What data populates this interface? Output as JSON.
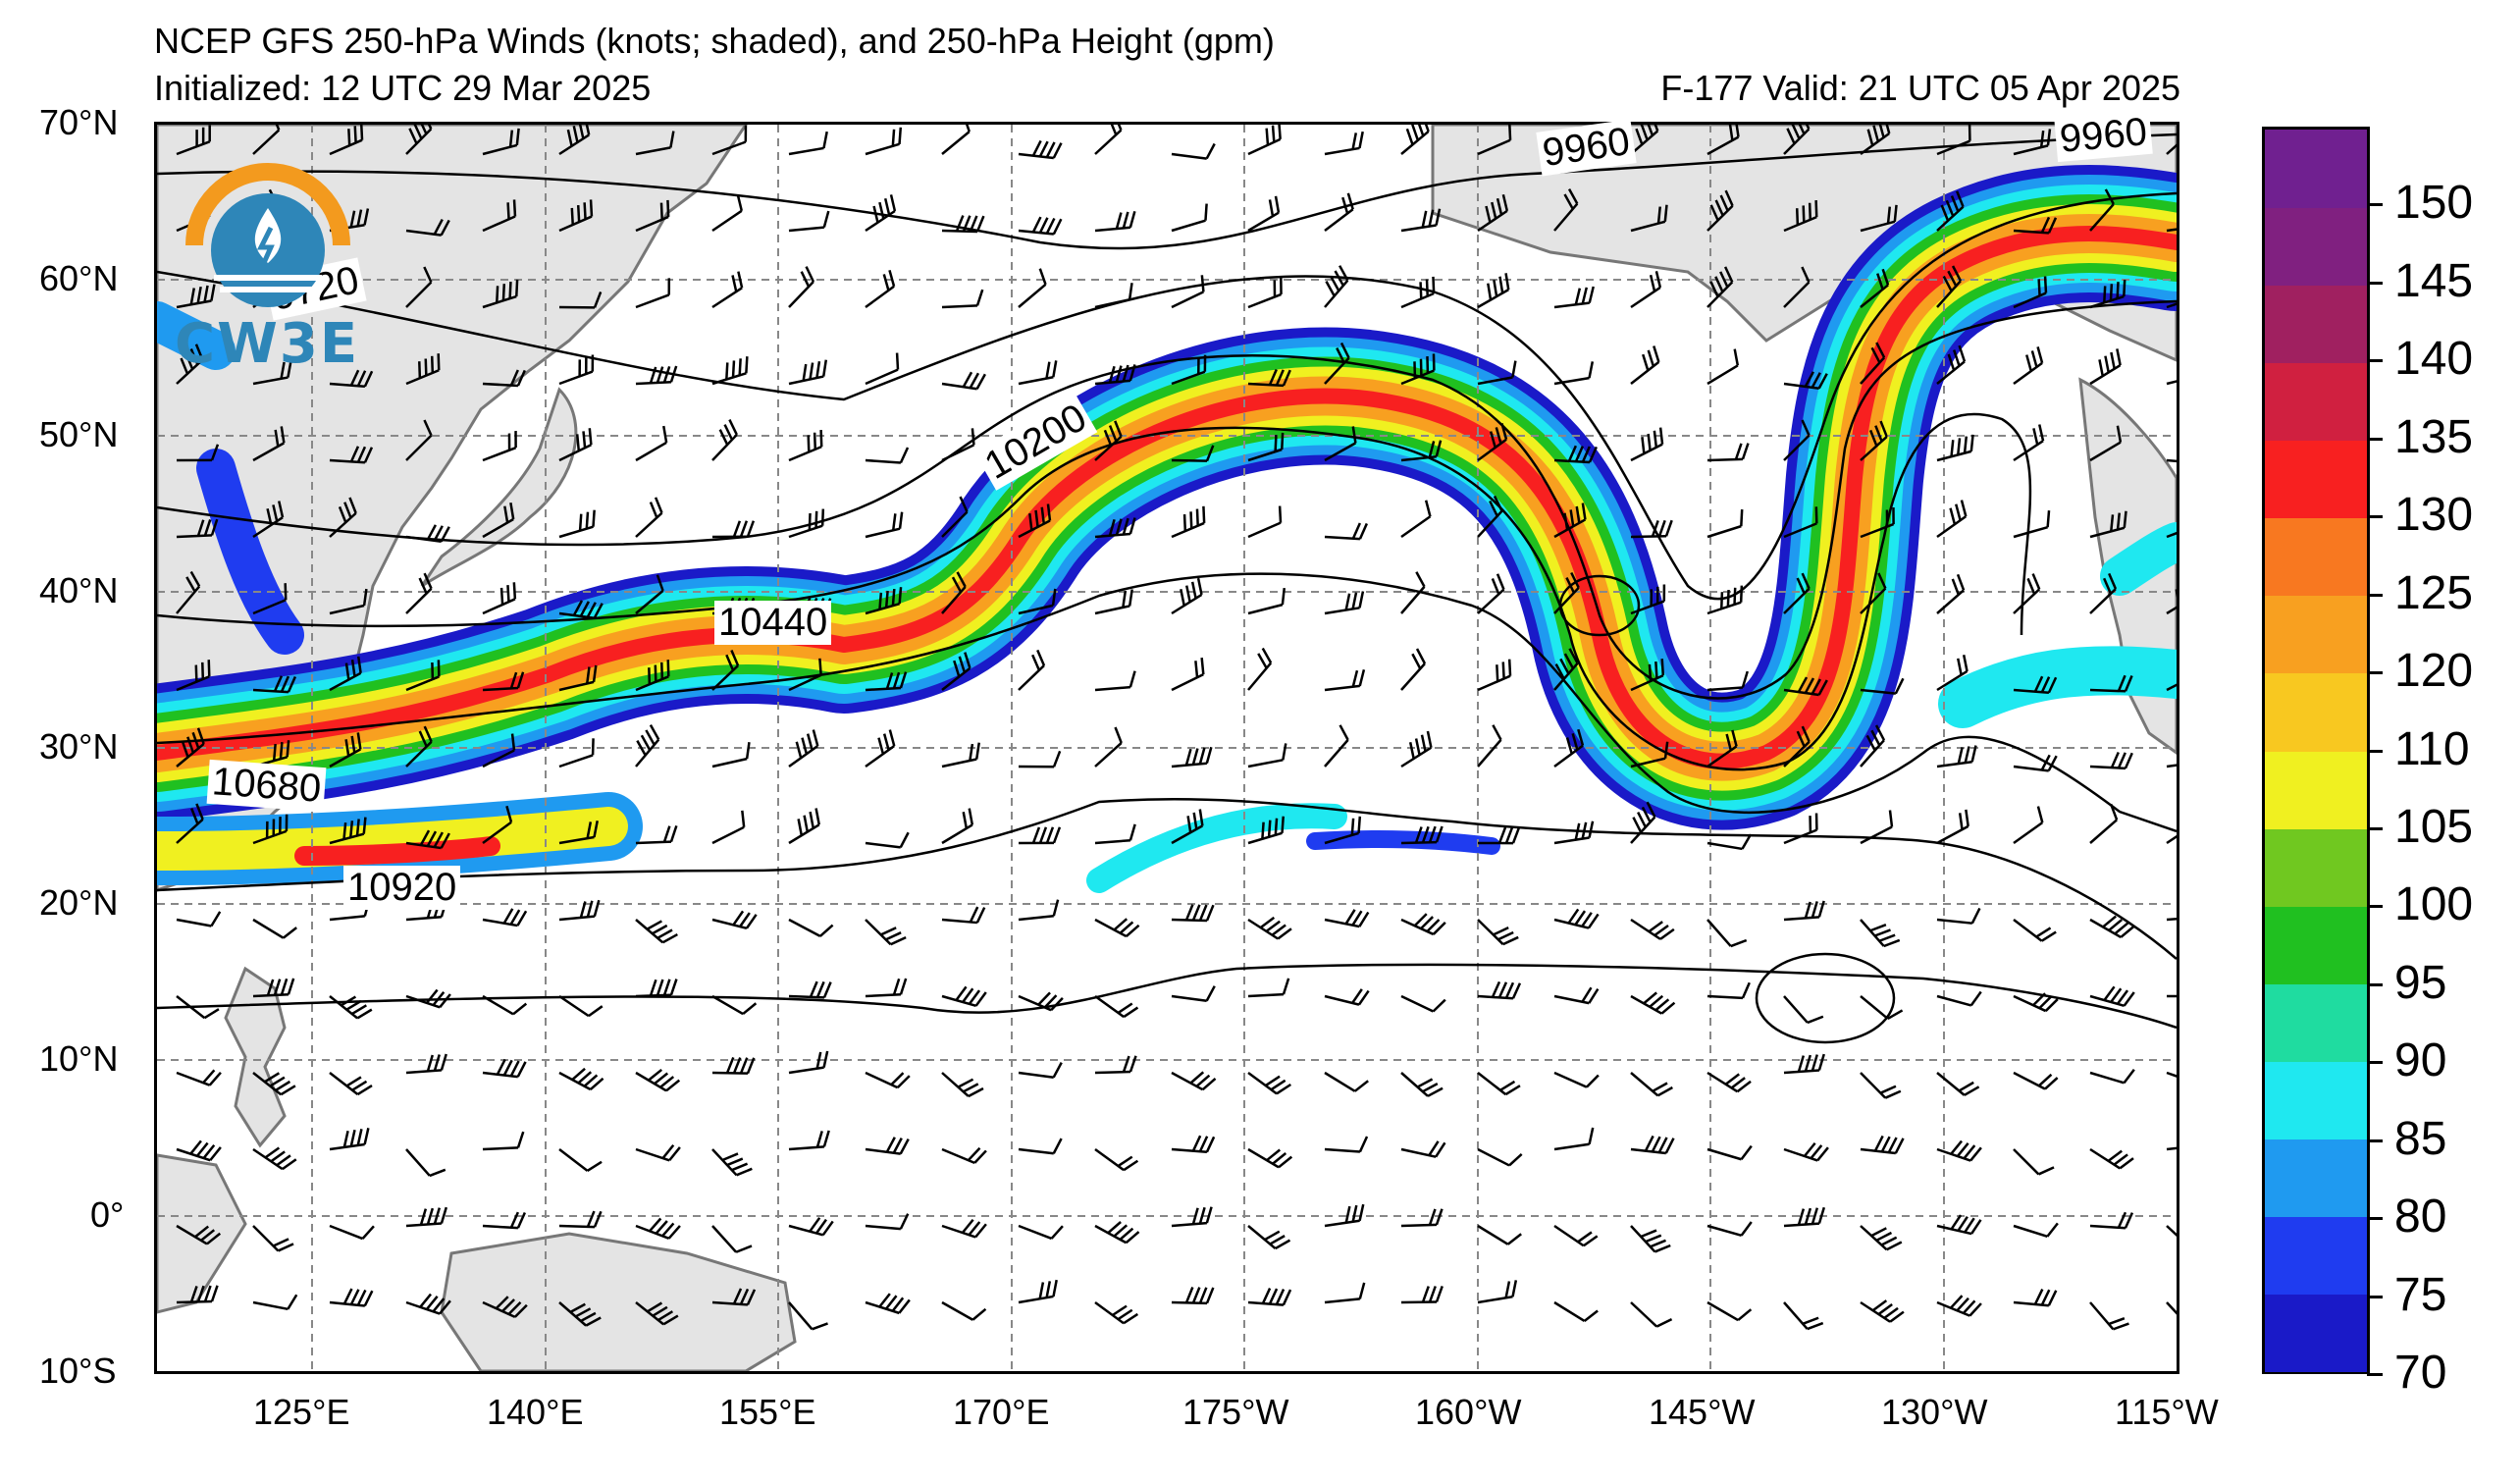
{
  "header": {
    "title": "NCEP GFS 250-hPa Winds (knots; shaded), and 250-hPa Height (gpm)",
    "initialized": "Initialized: 12 UTC 29 Mar 2025",
    "valid": "F-177  Valid: 21 UTC 05 Apr 2025"
  },
  "logo": {
    "text": "CW3E",
    "icon": "cw3e-logo-icon"
  },
  "axes": {
    "lat_labels": [
      "70°N",
      "60°N",
      "50°N",
      "40°N",
      "30°N",
      "20°N",
      "10°N",
      "0°",
      "10°S"
    ],
    "lon_labels": [
      "125°E",
      "140°E",
      "155°E",
      "170°E",
      "175°W",
      "160°W",
      "145°W",
      "130°W",
      "115°W"
    ]
  },
  "contour_labels": [
    "9720",
    "9960",
    "9960",
    "10200",
    "10440",
    "10680",
    "10920"
  ],
  "colorbar": {
    "labels": [
      "150",
      "145",
      "140",
      "135",
      "130",
      "125",
      "120",
      "110",
      "105",
      "100",
      "95",
      "90",
      "85",
      "80",
      "75",
      "70"
    ],
    "colors": [
      "#1a1ac8",
      "#1f3cf0",
      "#1f9af0",
      "#1fe8f0",
      "#1fdca0",
      "#20c020",
      "#70c820",
      "#f0f020",
      "#f8c820",
      "#f8a020",
      "#f87820",
      "#f82020",
      "#d02040",
      "#a02060",
      "#802080",
      "#702090"
    ]
  },
  "chart_data": {
    "type": "map",
    "product": "250-hPa wind speed (knots, shaded) with wind barbs and 250-hPa geopotential height contours (gpm)",
    "lat_range": [
      -10,
      70
    ],
    "lon_range_deg_east": [
      115,
      245
    ],
    "shading_levels_knots": [
      70,
      75,
      80,
      85,
      90,
      95,
      100,
      105,
      110,
      120,
      125,
      130,
      135,
      140,
      145,
      150
    ],
    "contour_interval_gpm": 240,
    "labeled_contours_gpm": [
      9720,
      9960,
      9960,
      10200,
      10440,
      10680,
      10920
    ]
  }
}
